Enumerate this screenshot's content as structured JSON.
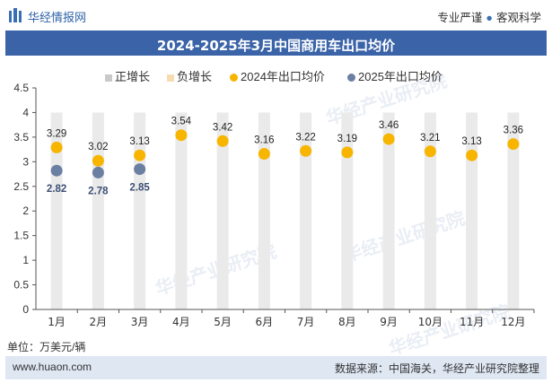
{
  "header": {
    "brand": "华经情报网",
    "tagline_left": "专业严谨",
    "tagline_right": "客观科学"
  },
  "watermark": "华经产业研究院",
  "watermark_url": "www.huaon.com",
  "unit_label": "单位：万美元/辆",
  "footer": {
    "website": "www.huaon.com",
    "source": "数据来源：中国海关，华经产业研究院整理"
  },
  "colors": {
    "accent": "#3a63a8",
    "series_2024": "#f7b500",
    "series_2025": "#6b7fa3",
    "positive_bar": "#eaeaea",
    "negative_bar": "#fbeed8"
  },
  "chart_data": {
    "type": "scatter",
    "title": "2024-2025年3月中国商用车出口均价",
    "categories": [
      "1月",
      "2月",
      "3月",
      "4月",
      "5月",
      "6月",
      "7月",
      "8月",
      "9月",
      "10月",
      "11月",
      "12月"
    ],
    "ylim": [
      0,
      4.5
    ],
    "yticks": [
      "0",
      "0.5",
      "1",
      "1.5",
      "2",
      "2.5",
      "3",
      "3.5",
      "4",
      "4.5"
    ],
    "legend": [
      "正增长",
      "负增长",
      "2024年出口均价",
      "2025年出口均价"
    ],
    "legend_position": "top",
    "bar_series": {
      "name": "正增长",
      "values": [
        4,
        4,
        4,
        4,
        4,
        4,
        4,
        4,
        4,
        4,
        4,
        4
      ]
    },
    "series": [
      {
        "name": "2024年出口均价",
        "values": [
          3.29,
          3.02,
          3.13,
          3.54,
          3.42,
          3.16,
          3.22,
          3.19,
          3.46,
          3.21,
          3.13,
          3.36
        ]
      },
      {
        "name": "2025年出口均价",
        "values": [
          2.82,
          2.78,
          2.85,
          null,
          null,
          null,
          null,
          null,
          null,
          null,
          null,
          null
        ]
      }
    ]
  }
}
